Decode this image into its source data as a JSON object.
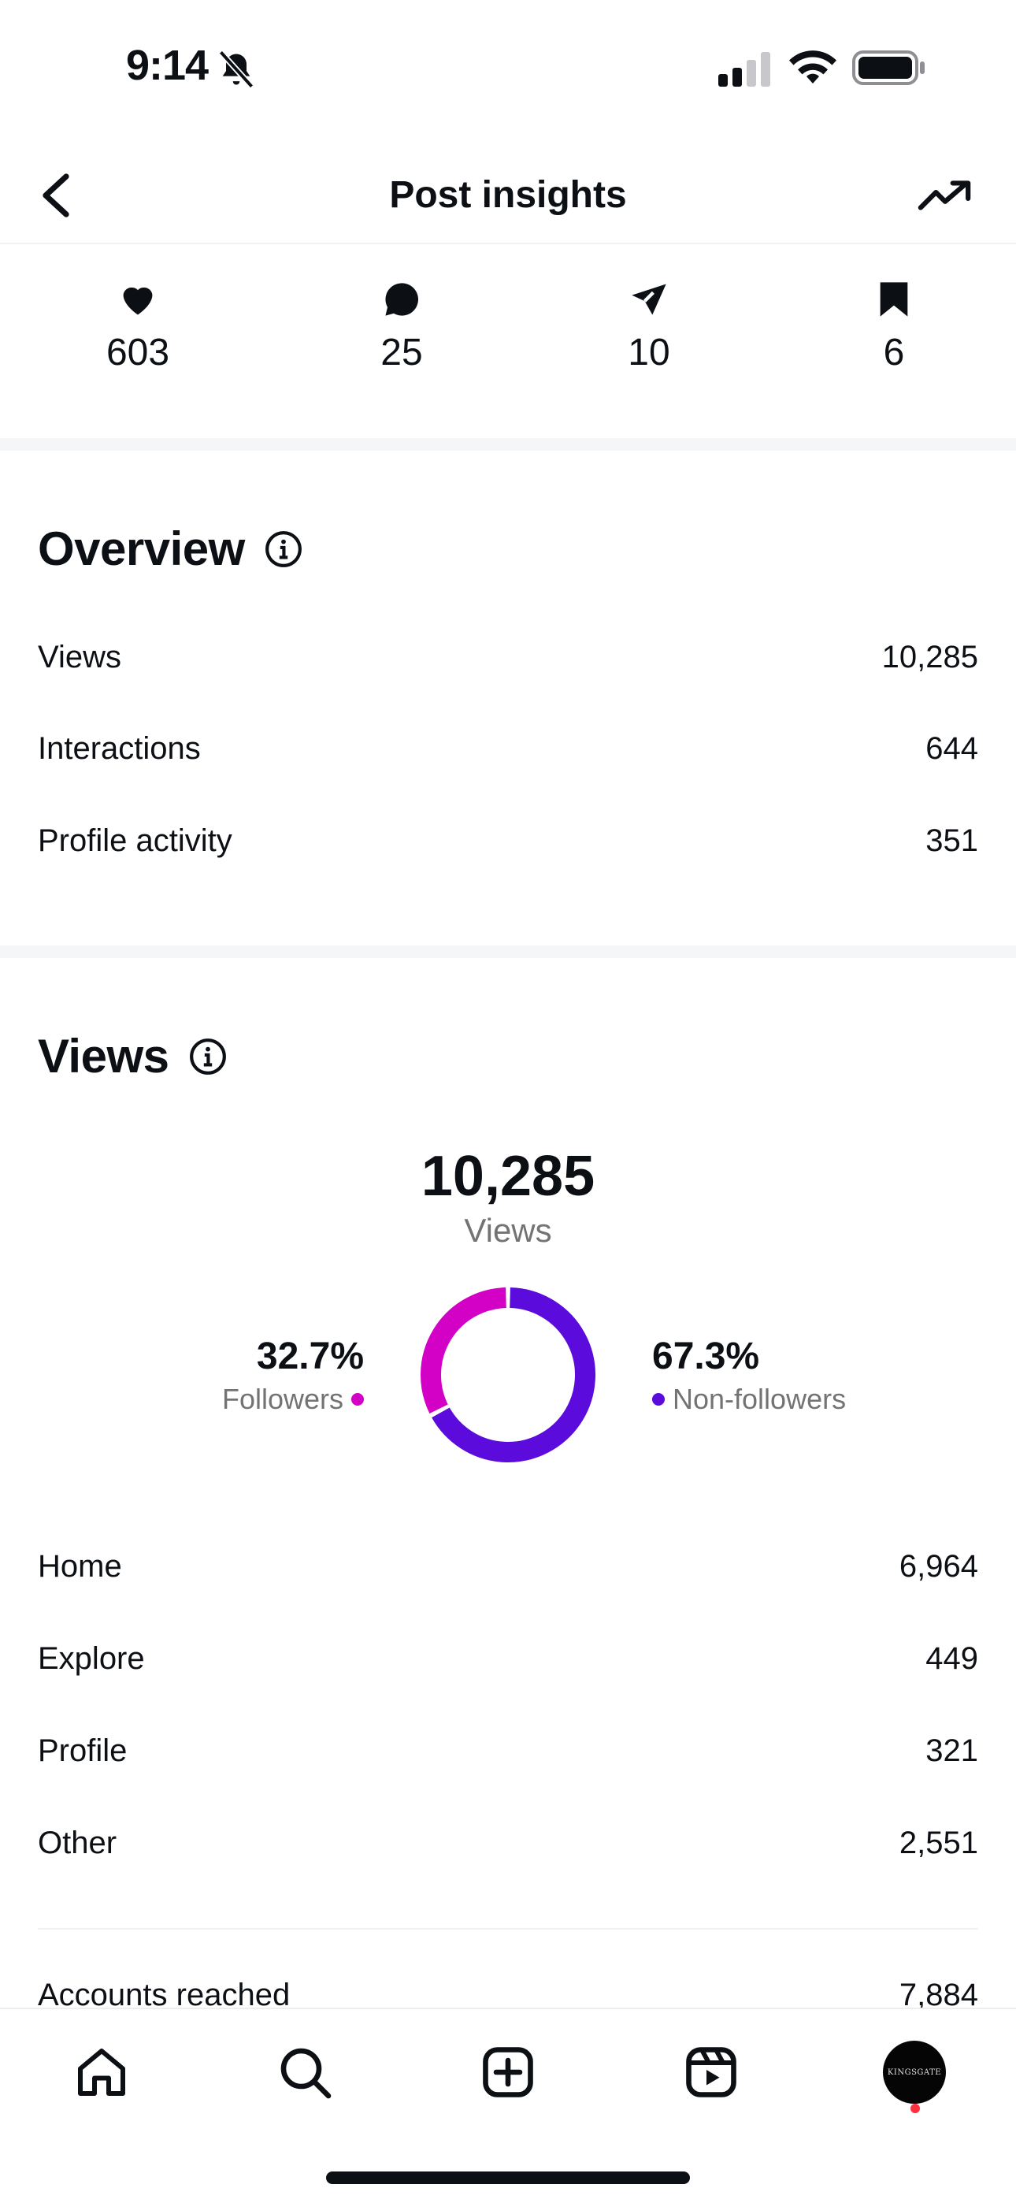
{
  "status_bar": {
    "time": "9:14"
  },
  "header": {
    "title": "Post insights"
  },
  "engagement": {
    "likes": "603",
    "comments": "25",
    "shares": "10",
    "saves": "6"
  },
  "overview": {
    "title": "Overview",
    "rows": [
      {
        "label": "Views",
        "value": "10,285"
      },
      {
        "label": "Interactions",
        "value": "644"
      },
      {
        "label": "Profile activity",
        "value": "351"
      }
    ]
  },
  "views": {
    "title": "Views",
    "total": "10,285",
    "total_label": "Views",
    "followers_pct": "32.7%",
    "followers_label": "Followers",
    "nonfollowers_pct": "67.3%",
    "nonfollowers_label": "Non-followers",
    "followers_color": "#d300c5",
    "nonfollowers_color": "#5b0bdb",
    "sources": [
      {
        "label": "Home",
        "value": "6,964"
      },
      {
        "label": "Explore",
        "value": "449"
      },
      {
        "label": "Profile",
        "value": "321"
      },
      {
        "label": "Other",
        "value": "2,551"
      }
    ],
    "accounts_reached_label": "Accounts reached",
    "accounts_reached_value": "7,884"
  },
  "chart_data": {
    "type": "pie",
    "categories": [
      "Followers",
      "Non-followers"
    ],
    "values": [
      32.7,
      67.3
    ]
  },
  "nav": {
    "avatar_text": "KINGSGATE"
  }
}
